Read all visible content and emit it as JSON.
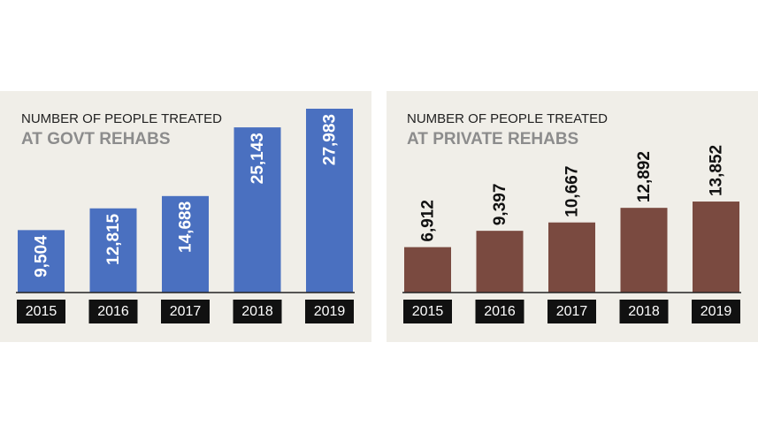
{
  "chart_data": [
    {
      "type": "bar",
      "title": "NUMBER OF PEOPLE TREATED",
      "subtitle": "AT GOVT REHABS",
      "categories": [
        "2015",
        "2016",
        "2017",
        "2018",
        "2019"
      ],
      "values": [
        9504,
        12815,
        14688,
        25143,
        27983
      ],
      "value_labels": [
        "9,504",
        "12,815",
        "14,688",
        "25,143",
        "27,983"
      ],
      "color": "#4a70c0",
      "label_position": "inside"
    },
    {
      "type": "bar",
      "title": "NUMBER OF PEOPLE TREATED",
      "subtitle": "AT PRIVATE REHABS",
      "categories": [
        "2015",
        "2016",
        "2017",
        "2018",
        "2019"
      ],
      "values": [
        6912,
        9397,
        10667,
        12892,
        13852
      ],
      "value_labels": [
        "6,912",
        "9,397",
        "10,667",
        "12,892",
        "13,852"
      ],
      "color": "#7a4a40",
      "label_position": "outside"
    }
  ]
}
